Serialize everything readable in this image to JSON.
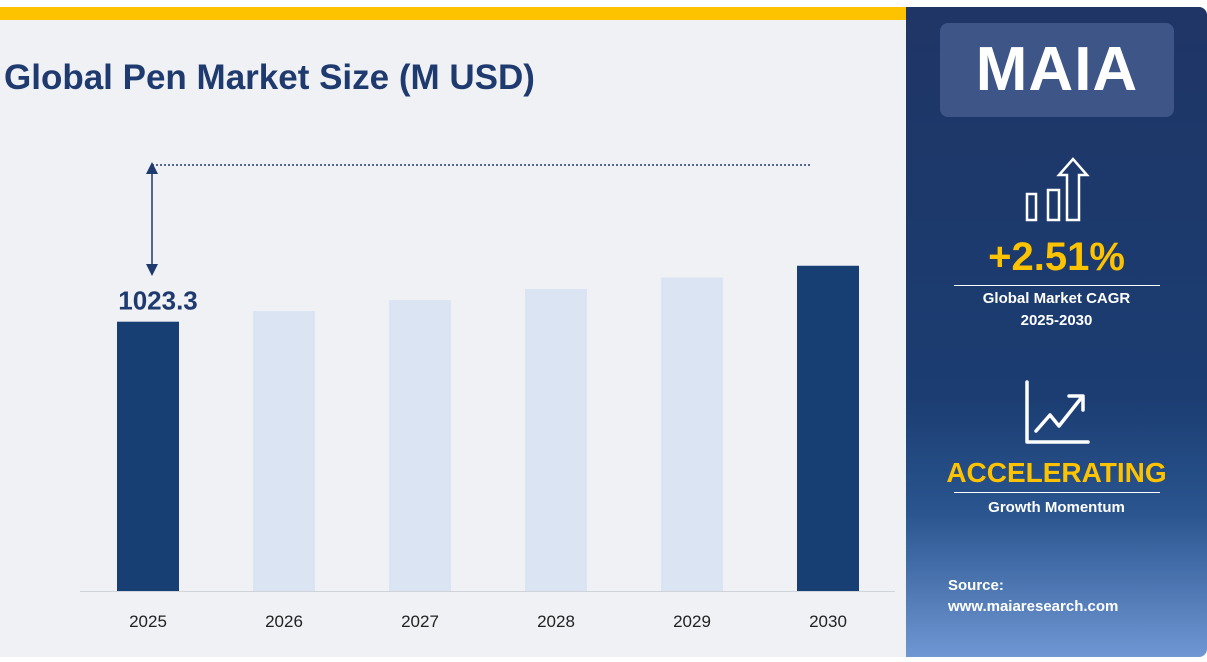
{
  "chart_data": {
    "type": "bar",
    "title": "Global Pen Market Size (M USD)",
    "categories": [
      "2025",
      "2026",
      "2027",
      "2028",
      "2029",
      "2030"
    ],
    "values": [
      1023.3,
      1049.0,
      1075.3,
      1102.3,
      1130.0,
      1158.4
    ],
    "data_labels": {
      "2025": "1023.3"
    },
    "highlighted": [
      "2025",
      "2030"
    ],
    "xlabel": "",
    "ylabel": "",
    "ylim": [
      373,
      1450
    ],
    "grid": false,
    "colors": {
      "highlight": "#173f73",
      "normal": "#dbe4f3"
    }
  },
  "sidebar": {
    "logo": "MAIA",
    "cagr_value": "+2.51%",
    "cagr_label": "Global Market CAGR",
    "cagr_period": "2025-2030",
    "momentum_value": "ACCELERATING",
    "momentum_label": "Growth Momentum",
    "source_label": "Source:",
    "source_url": "www.maiaresearch.com",
    "icons": [
      "bar-chart-up-arrow-icon",
      "line-chart-trend-icon"
    ]
  },
  "colors": {
    "accent": "#fdc300",
    "navy": "#1f3a6e"
  }
}
